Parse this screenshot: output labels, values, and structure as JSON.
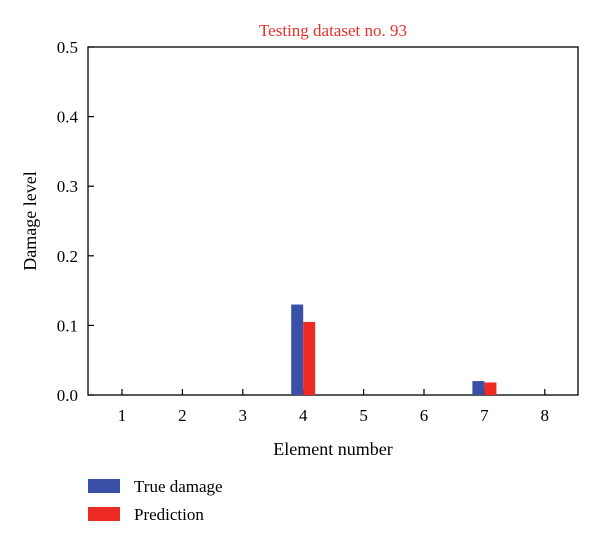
{
  "chart_data": {
    "type": "bar",
    "title": "Testing dataset no. 93",
    "xlabel": "Element number",
    "ylabel": "Damage level",
    "categories": [
      "1",
      "2",
      "3",
      "4",
      "5",
      "6",
      "7",
      "8"
    ],
    "ylim": [
      0,
      0.5
    ],
    "yticks": [
      "0.0",
      "0.1",
      "0.2",
      "0.3",
      "0.4",
      "0.5"
    ],
    "grid": false,
    "legend_position": "bottom-left",
    "series": [
      {
        "name": "True damage",
        "color": "#3850a8",
        "values": [
          0,
          0,
          0,
          0.13,
          0,
          0,
          0.02,
          0
        ]
      },
      {
        "name": "Prediction",
        "color": "#ee2a24",
        "values": [
          0,
          0,
          0,
          0.105,
          0,
          0,
          0.018,
          0
        ]
      }
    ],
    "title_color": "#e8302a"
  }
}
